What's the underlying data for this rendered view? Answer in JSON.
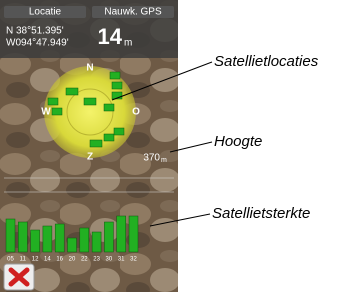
{
  "screen": {
    "header": {
      "location_label": "Locatie",
      "accuracy_label": "Nauwk. GPS",
      "latitude": "N  38°51.395'",
      "longitude": "W094°47.949'",
      "accuracy": "14",
      "accuracy_unit": "m"
    },
    "sky": {
      "north": "N",
      "east": "O",
      "south": "Z",
      "west": "W"
    },
    "altitude": {
      "value": "370",
      "unit": "m"
    },
    "signal": {
      "satellites": [
        "05",
        "11",
        "12",
        "14",
        "16",
        "20",
        "22",
        "23",
        "30",
        "31",
        "32"
      ],
      "strength": [
        33,
        30,
        22,
        26,
        28,
        14,
        24,
        20,
        30,
        36,
        36
      ],
      "color": "#22b022"
    }
  },
  "callouts": {
    "sky": "Satellietlocaties",
    "altitude": "Hoogte",
    "signal": "Satellietsterkte"
  }
}
